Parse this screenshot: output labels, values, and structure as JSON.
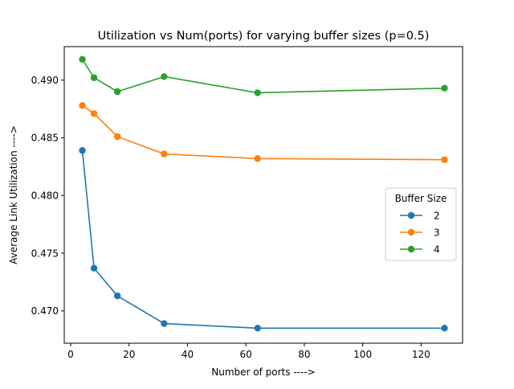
{
  "chart_data": {
    "type": "line",
    "title": "Utilization vs Num(ports) for varying buffer sizes (p=0.5)",
    "xlabel": "Number of ports ---->",
    "ylabel": "Average Link Utilization ---->",
    "xlim": [
      -2.2,
      134.2
    ],
    "ylim": [
      0.4672,
      0.4929
    ],
    "xticks": [
      0,
      20,
      40,
      60,
      80,
      100,
      120
    ],
    "xtick_labels": [
      "0",
      "20",
      "40",
      "60",
      "80",
      "100",
      "120"
    ],
    "yticks": [
      0.47,
      0.475,
      0.48,
      0.485,
      0.49
    ],
    "ytick_labels": [
      "0.470",
      "0.475",
      "0.480",
      "0.485",
      "0.490"
    ],
    "grid": false,
    "legend": {
      "title": "Buffer Size",
      "placement": "center-right"
    },
    "x": [
      4,
      8,
      16,
      32,
      64,
      128
    ],
    "series": [
      {
        "name": "2",
        "color": "#1f77b4",
        "values": [
          0.4839,
          0.4737,
          0.4713,
          0.4689,
          0.4685,
          0.4685
        ]
      },
      {
        "name": "3",
        "color": "#ff7f0e",
        "values": [
          0.4878,
          0.4871,
          0.4851,
          0.4836,
          0.4832,
          0.4831
        ]
      },
      {
        "name": "4",
        "color": "#2ca02c",
        "values": [
          0.4918,
          0.4902,
          0.489,
          0.4903,
          0.4889,
          0.4893
        ]
      }
    ]
  }
}
